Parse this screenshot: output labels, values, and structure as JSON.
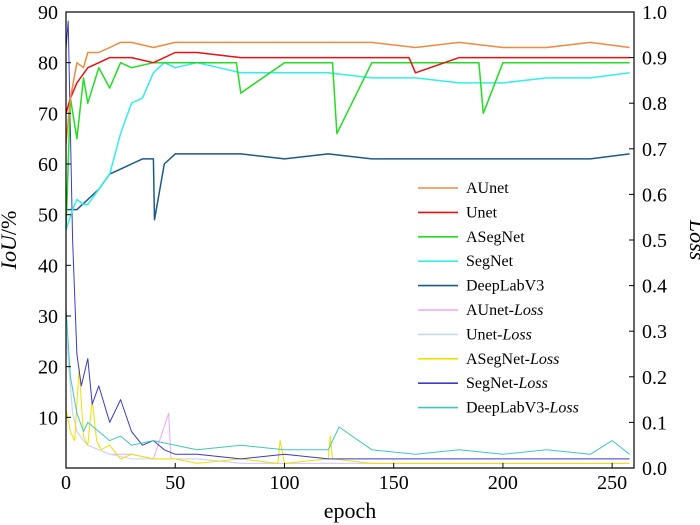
{
  "chart_data": {
    "type": "line",
    "xlabel": "epoch",
    "ylabel_left_italic": "IoU",
    "ylabel_left_suffix": "/%",
    "ylabel_right": "Loss",
    "xlim": [
      0,
      260
    ],
    "ylim_left": [
      0,
      90
    ],
    "ylim_right": [
      0.0,
      1.0
    ],
    "x_ticks": [
      0,
      50,
      100,
      150,
      200,
      250
    ],
    "y_ticks_left": [
      10,
      20,
      30,
      40,
      50,
      60,
      70,
      80,
      90
    ],
    "y_ticks_right": [
      "0.0",
      "0.1",
      "0.2",
      "0.3",
      "0.4",
      "0.5",
      "0.6",
      "0.7",
      "0.8",
      "0.9",
      "1.0"
    ],
    "grid": false,
    "legend_position": "center-right",
    "series": [
      {
        "name": "AUnet",
        "name_plain": "AUnet",
        "name_italic": "",
        "axis": "left",
        "color": "#f08a40",
        "x": [
          0,
          2,
          5,
          8,
          10,
          15,
          20,
          25,
          30,
          40,
          50,
          60,
          80,
          100,
          120,
          140,
          160,
          180,
          200,
          220,
          240,
          258
        ],
        "y": [
          64,
          73,
          80,
          79,
          82,
          82,
          83,
          84,
          84,
          83,
          84,
          84,
          84,
          84,
          84,
          84,
          83,
          84,
          83,
          83,
          84,
          83
        ]
      },
      {
        "name": "Unet",
        "name_plain": "Unet",
        "name_italic": "",
        "axis": "left",
        "color": "#e81010",
        "x": [
          0,
          2,
          5,
          10,
          15,
          20,
          30,
          40,
          50,
          60,
          80,
          100,
          120,
          140,
          157,
          160,
          180,
          200,
          220,
          240,
          258
        ],
        "y": [
          70,
          73,
          76,
          79,
          80,
          81,
          81,
          80,
          82,
          82,
          81,
          81,
          81,
          81,
          81,
          78,
          81,
          81,
          81,
          81,
          81
        ]
      },
      {
        "name": "ASegNet",
        "name_plain": "ASegNet",
        "name_italic": "",
        "axis": "left",
        "color": "#22dd22",
        "x": [
          0,
          2,
          5,
          8,
          10,
          15,
          20,
          25,
          30,
          40,
          50,
          60,
          70,
          78,
          80,
          100,
          110,
          122,
          124,
          140,
          160,
          180,
          189,
          191,
          200,
          220,
          240,
          258
        ],
        "y": [
          47,
          73,
          65,
          77,
          72,
          79,
          75,
          80,
          79,
          80,
          80,
          80,
          80,
          80,
          74,
          80,
          80,
          80,
          66,
          80,
          80,
          80,
          80,
          70,
          80,
          80,
          80,
          80
        ]
      },
      {
        "name": "SegNet",
        "name_plain": "SegNet",
        "name_italic": "",
        "axis": "left",
        "color": "#33eeee",
        "x": [
          0,
          3,
          5,
          8,
          10,
          15,
          20,
          25,
          30,
          35,
          40,
          45,
          50,
          60,
          70,
          80,
          100,
          120,
          140,
          160,
          180,
          200,
          220,
          240,
          258
        ],
        "y": [
          47,
          51,
          53,
          52,
          52,
          55,
          58,
          66,
          72,
          73,
          78,
          80,
          79,
          80,
          79,
          78,
          78,
          78,
          77,
          77,
          76,
          76,
          77,
          77,
          78
        ]
      },
      {
        "name": "DeepLabV3",
        "name_plain": "DeepLabV3",
        "name_italic": "",
        "axis": "left",
        "color": "#1a5a8a",
        "x": [
          0,
          5,
          10,
          15,
          20,
          25,
          30,
          35,
          40,
          40.5,
          45,
          50,
          60,
          80,
          100,
          120,
          140,
          160,
          180,
          200,
          220,
          240,
          258
        ],
        "y": [
          51,
          51,
          53,
          55,
          58,
          59,
          60,
          61,
          61,
          49,
          60,
          62,
          62,
          62,
          61,
          62,
          61,
          61,
          61,
          61,
          61,
          61,
          62
        ]
      },
      {
        "name": "AUnet-Loss",
        "name_plain": "AUnet-",
        "name_italic": "Loss",
        "axis": "right",
        "color": "#f4a6f0",
        "x": [
          0,
          3,
          5,
          8,
          10,
          15,
          20,
          30,
          40,
          47,
          48,
          50,
          60,
          80,
          100,
          120,
          140,
          160,
          180,
          200,
          220,
          240,
          258
        ],
        "y": [
          0.3,
          0.12,
          0.08,
          0.06,
          0.05,
          0.04,
          0.03,
          0.03,
          0.02,
          0.12,
          0.02,
          0.02,
          0.02,
          0.01,
          0.01,
          0.01,
          0.01,
          0.01,
          0.01,
          0.01,
          0.01,
          0.01,
          0.01
        ]
      },
      {
        "name": "Unet-Loss",
        "name_plain": "Unet-",
        "name_italic": "Loss",
        "axis": "right",
        "color": "#c8d8f8",
        "x": [
          0,
          3,
          5,
          8,
          10,
          15,
          20,
          30,
          40,
          50,
          60,
          80,
          100,
          120,
          140,
          160,
          180,
          200,
          220,
          240,
          258
        ],
        "y": [
          0.3,
          0.12,
          0.08,
          0.06,
          0.05,
          0.04,
          0.03,
          0.02,
          0.02,
          0.02,
          0.02,
          0.01,
          0.01,
          0.01,
          0.01,
          0.01,
          0.01,
          0.01,
          0.01,
          0.01,
          0.01
        ]
      },
      {
        "name": "ASegNet-Loss",
        "name_plain": "ASegNet-",
        "name_italic": "Loss",
        "axis": "right",
        "color": "#f0e000",
        "x": [
          0,
          2,
          4,
          6,
          8,
          10,
          12,
          14,
          16,
          20,
          25,
          30,
          40,
          50,
          60,
          80,
          97,
          98,
          100,
          120,
          121,
          122,
          140,
          160,
          180,
          200,
          220,
          240,
          258
        ],
        "y": [
          0.13,
          0.08,
          0.06,
          0.22,
          0.07,
          0.05,
          0.15,
          0.06,
          0.04,
          0.05,
          0.02,
          0.03,
          0.02,
          0.02,
          0.01,
          0.02,
          0.01,
          0.06,
          0.01,
          0.02,
          0.07,
          0.02,
          0.01,
          0.01,
          0.01,
          0.01,
          0.01,
          0.01,
          0.01
        ]
      },
      {
        "name": "SegNet-Loss",
        "name_plain": "SegNet-",
        "name_italic": "Loss",
        "axis": "right",
        "color": "#3a3acc",
        "x": [
          0,
          1,
          3,
          5,
          7,
          10,
          12,
          15,
          20,
          25,
          30,
          35,
          40,
          45,
          50,
          60,
          80,
          100,
          120,
          140,
          160,
          180,
          200,
          220,
          240,
          258
        ],
        "y": [
          0.92,
          0.98,
          0.5,
          0.25,
          0.18,
          0.24,
          0.14,
          0.18,
          0.1,
          0.15,
          0.08,
          0.05,
          0.06,
          0.04,
          0.03,
          0.03,
          0.02,
          0.03,
          0.02,
          0.02,
          0.02,
          0.02,
          0.02,
          0.02,
          0.02,
          0.02
        ]
      },
      {
        "name": "DeepLabV3-Loss",
        "name_plain": "DeepLabV3-",
        "name_italic": "Loss",
        "axis": "right",
        "color": "#40c8c0",
        "x": [
          0,
          2,
          5,
          8,
          10,
          15,
          20,
          25,
          30,
          40,
          50,
          60,
          80,
          100,
          120,
          125,
          140,
          160,
          180,
          200,
          220,
          240,
          250,
          258
        ],
        "y": [
          0.35,
          0.2,
          0.12,
          0.08,
          0.1,
          0.08,
          0.06,
          0.07,
          0.05,
          0.06,
          0.05,
          0.04,
          0.05,
          0.04,
          0.04,
          0.09,
          0.04,
          0.03,
          0.04,
          0.03,
          0.04,
          0.03,
          0.06,
          0.03
        ]
      }
    ]
  }
}
